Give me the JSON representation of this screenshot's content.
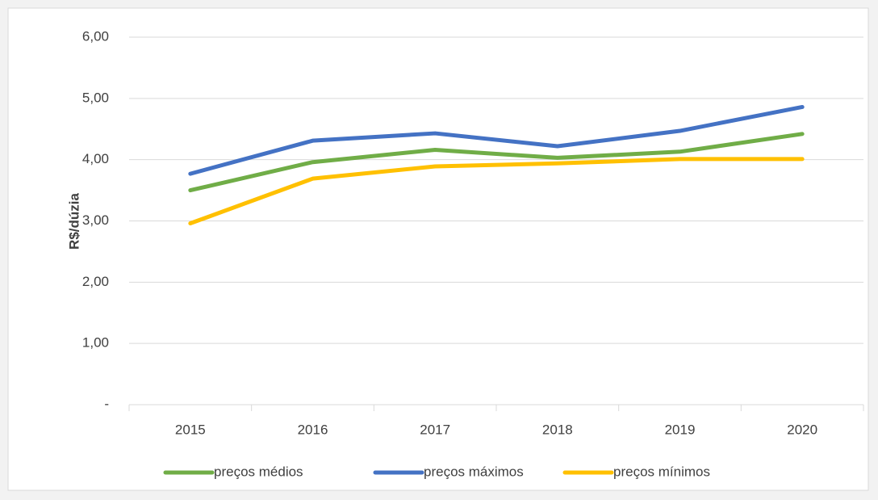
{
  "chart_data": {
    "type": "line",
    "y_label": "R$/dúzia",
    "categories": [
      "2015",
      "2016",
      "2017",
      "2018",
      "2019",
      "2020"
    ],
    "series": [
      {
        "name": "preços médios",
        "color": "#70ad47",
        "values": [
          3.5,
          3.96,
          4.16,
          4.03,
          4.13,
          4.42
        ]
      },
      {
        "name": "preços máximos",
        "color": "#4472c4",
        "values": [
          3.77,
          4.31,
          4.43,
          4.22,
          4.47,
          4.86
        ]
      },
      {
        "name": "preços mínimos",
        "color": "#ffc000",
        "values": [
          2.96,
          3.69,
          3.89,
          3.94,
          4.01,
          4.01
        ]
      }
    ],
    "ylim": [
      0,
      6
    ],
    "yticks": [
      {
        "value": 0,
        "label": "-"
      },
      {
        "value": 1,
        "label": "1,00"
      },
      {
        "value": 2,
        "label": "2,00"
      },
      {
        "value": 3,
        "label": "3,00"
      },
      {
        "value": 4,
        "label": "4,00"
      },
      {
        "value": 5,
        "label": "5,00"
      },
      {
        "value": 6,
        "label": "6,00"
      }
    ],
    "grid": true,
    "legend": "bottom"
  }
}
